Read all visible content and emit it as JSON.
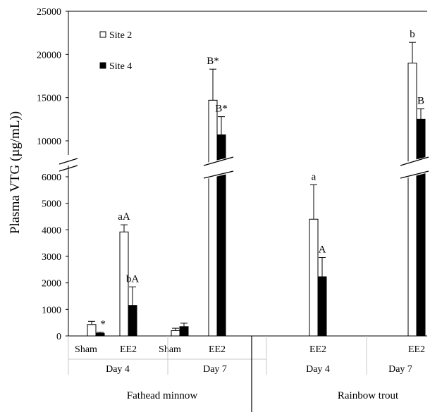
{
  "chart_data": {
    "type": "bar",
    "ylabel": "Plasma VTG (µg/mL))",
    "axis_break": {
      "lower_range": [
        0,
        6000
      ],
      "upper_range": [
        10000,
        25000
      ]
    },
    "y_ticks_lower": [
      0,
      1000,
      2000,
      3000,
      4000,
      5000,
      6000
    ],
    "y_ticks_upper": [
      10000,
      15000,
      20000,
      25000
    ],
    "legend": {
      "position": "top-left",
      "items": [
        "Site 2",
        "Site 4"
      ]
    },
    "colors": {
      "Site 2": "#ffffff",
      "Site 4": "#000000"
    },
    "species": [
      "Fathead minnow",
      "Rainbow trout"
    ],
    "days": [
      "Day 4",
      "Day 7",
      "Day 4",
      "Day 7"
    ],
    "groups": [
      {
        "species": "Fathead minnow",
        "day": "Day 4",
        "treatment": "Sham",
        "site2": {
          "value": 430,
          "error": 120,
          "label": ""
        },
        "site4": {
          "value": 100,
          "error": 40,
          "label": "*"
        }
      },
      {
        "species": "Fathead minnow",
        "day": "Day 4",
        "treatment": "EE2",
        "site2": {
          "value": 3920,
          "error": 270,
          "label": "aA"
        },
        "site4": {
          "value": 1150,
          "error": 700,
          "label": "bA"
        }
      },
      {
        "species": "Fathead minnow",
        "day": "Day 7",
        "treatment": "Sham",
        "site2": {
          "value": 200,
          "error": 90,
          "label": ""
        },
        "site4": {
          "value": 350,
          "error": 130,
          "label": ""
        }
      },
      {
        "species": "Fathead minnow",
        "day": "Day 7",
        "treatment": "EE2",
        "site2": {
          "value": 14700,
          "error": 3600,
          "label": "B*"
        },
        "site4": {
          "value": 10700,
          "error": 2100,
          "label": "B*"
        }
      },
      {
        "species": "Rainbow trout",
        "day": "Day 4",
        "treatment": "EE2",
        "site2": {
          "value": 4400,
          "error": 1300,
          "label": "a"
        },
        "site4": {
          "value": 2230,
          "error": 730,
          "label": "A"
        }
      },
      {
        "species": "Rainbow trout",
        "day": "Day 7",
        "treatment": "EE2",
        "site2": {
          "value": 19000,
          "error": 2400,
          "label": "b"
        },
        "site4": {
          "value": 12500,
          "error": 1200,
          "label": "B"
        }
      }
    ]
  }
}
